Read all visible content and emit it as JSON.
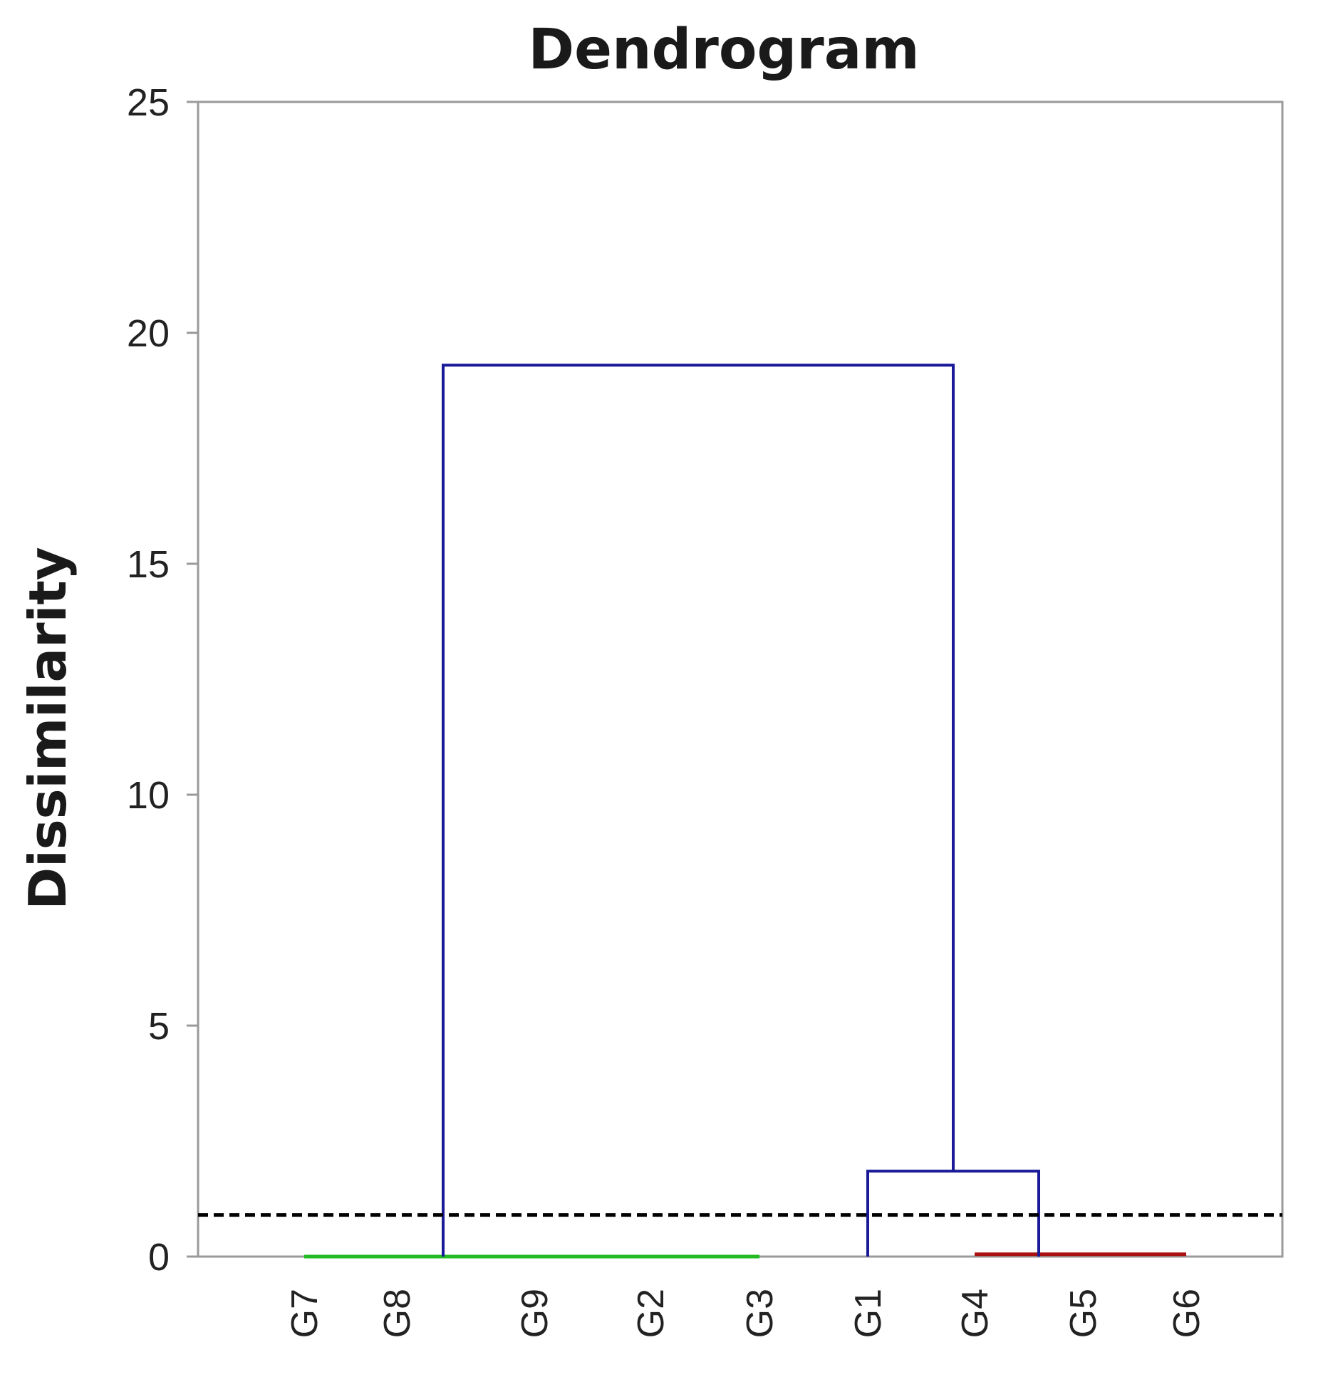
{
  "chart_data": {
    "type": "dendrogram",
    "title": "Dendrogram",
    "xlabel": "",
    "ylabel": "Dissimilarity",
    "ylim": [
      0,
      25
    ],
    "yticks": [
      0,
      5,
      10,
      15,
      20,
      25
    ],
    "leaves": [
      "G7",
      "G8",
      "G9",
      "G2",
      "G3",
      "G1",
      "G4",
      "G5",
      "G6"
    ],
    "clusters": [
      {
        "members": [
          "G7",
          "G8",
          "G9",
          "G2",
          "G3"
        ],
        "height": 0,
        "color": "#22bb22"
      },
      {
        "members": [
          "G4",
          "G5",
          "G6"
        ],
        "height": 0.05,
        "color": "#aa1111"
      }
    ],
    "merges": [
      {
        "left": [
          "G4",
          "G5",
          "G6"
        ],
        "right": [
          "G1"
        ],
        "height": 1.85,
        "color": "#1a1a99"
      },
      {
        "left": [
          "G7",
          "G8",
          "G9",
          "G2",
          "G3"
        ],
        "right": [
          "G1",
          "G4",
          "G5",
          "G6"
        ],
        "height": 19.3,
        "color": "#1a1a99"
      }
    ],
    "cut_line": {
      "value": 0.9,
      "style": "dashed",
      "color": "#000000"
    },
    "grid": false,
    "legend": "none"
  }
}
